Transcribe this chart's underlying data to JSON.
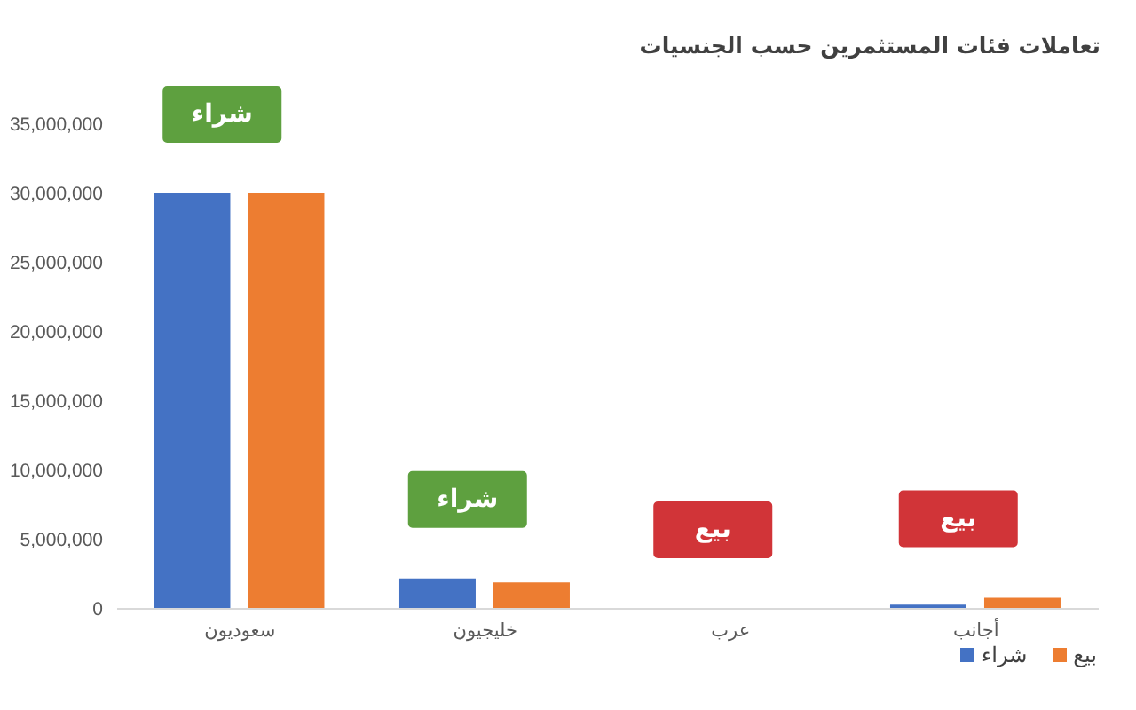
{
  "chart_data": {
    "type": "bar",
    "title": "تعاملات فئات المستثمرين حسب الجنسيات",
    "categories": [
      "سعوديون",
      "خليجيون",
      "عرب",
      "أجانب"
    ],
    "series": [
      {
        "name": "شراء",
        "color": "#4472c4",
        "values": [
          30000000,
          2200000,
          0,
          300000
        ]
      },
      {
        "name": "بيع",
        "color": "#ed7d31",
        "values": [
          30000000,
          1900000,
          0,
          800000
        ]
      }
    ],
    "ylim": [
      0,
      35000000
    ],
    "yticks": [
      0,
      {
        "value": 5000000,
        "label": "5,000,000"
      },
      {
        "value": 10000000,
        "label": "10,000,000"
      },
      {
        "value": 15000000,
        "label": "15,000,000"
      },
      {
        "value": 20000000,
        "label": "20,000,000"
      },
      {
        "value": 25000000,
        "label": "25,000,000"
      },
      {
        "value": 30000000,
        "label": "30,000,000"
      },
      {
        "value": 35000000,
        "label": "35,000,000"
      }
    ],
    "legend": "bottom right",
    "annotations": [
      "شراء",
      "شراء",
      "بيع",
      "بيع"
    ]
  }
}
